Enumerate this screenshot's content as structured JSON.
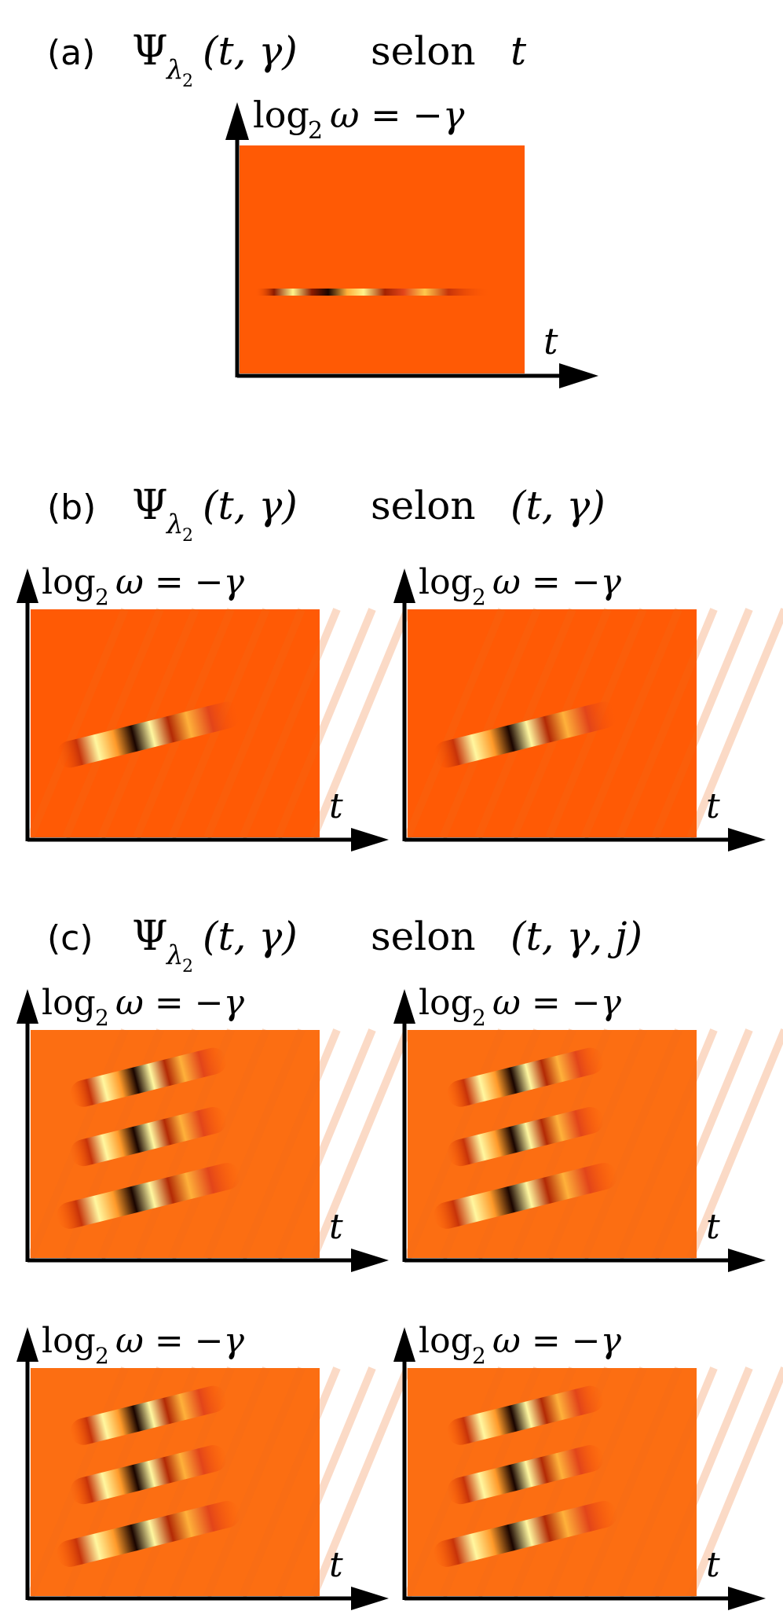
{
  "panels": [
    {
      "id": "a",
      "letter": "(a)",
      "psi": "Ψ",
      "sub": "λ",
      "subsub": "2",
      "args": "(t, γ)",
      "selon": "selon",
      "dims": "t",
      "pattern": "line"
    },
    {
      "id": "b",
      "letter": "(b)",
      "psi": "Ψ",
      "sub": "λ",
      "subsub": "2",
      "args": "(t, γ)",
      "selon": "selon",
      "dims": "(t, γ)",
      "pattern": "single"
    },
    {
      "id": "c",
      "letter": "(c)",
      "psi": "Ψ",
      "sub": "λ",
      "subsub": "2",
      "args": "(t, γ)",
      "selon": "selon",
      "dims": "(t, γ, j)",
      "pattern": "triple"
    }
  ],
  "axis": {
    "y_log": "log",
    "y_sub": "2",
    "y_rest": "ω = −γ",
    "x_label": "t"
  },
  "colors": {
    "background": "#ff5a05",
    "background_c": "#fc6e12",
    "dark": "#1a0500",
    "light": "#fff7a0"
  }
}
